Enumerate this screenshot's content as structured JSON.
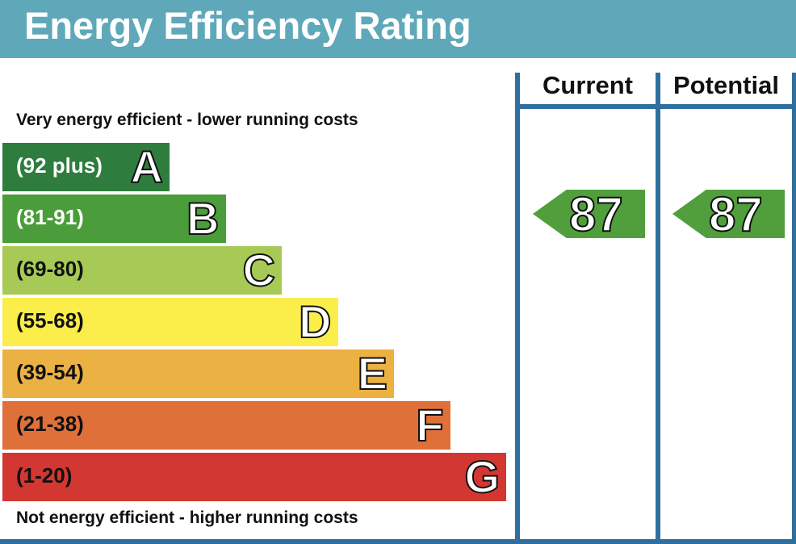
{
  "chart_data": {
    "type": "bar",
    "title": "Energy Efficiency Rating",
    "top_note": "Very energy efficient - lower running costs",
    "bottom_note": "Not energy efficient - higher running costs",
    "columns": [
      "Current",
      "Potential"
    ],
    "bands": [
      {
        "letter": "A",
        "range": "(92 plus)",
        "color": "#2e7d3f",
        "text_color": "#ffffff"
      },
      {
        "letter": "B",
        "range": "(81-91)",
        "color": "#4a9d3a",
        "text_color": "#ffffff"
      },
      {
        "letter": "C",
        "range": "(69-80)",
        "color": "#a7c956",
        "text_color": "#111111"
      },
      {
        "letter": "D",
        "range": "(55-68)",
        "color": "#fbee4b",
        "text_color": "#111111"
      },
      {
        "letter": "E",
        "range": "(39-54)",
        "color": "#ecb143",
        "text_color": "#111111"
      },
      {
        "letter": "F",
        "range": "(21-38)",
        "color": "#e0703a",
        "text_color": "#111111"
      },
      {
        "letter": "G",
        "range": "(1-20)",
        "color": "#d33731",
        "text_color": "#111111"
      }
    ],
    "current": {
      "value": "87",
      "band": "B",
      "color": "#509f3c"
    },
    "potential": {
      "value": "87",
      "band": "B",
      "color": "#509f3c"
    }
  }
}
